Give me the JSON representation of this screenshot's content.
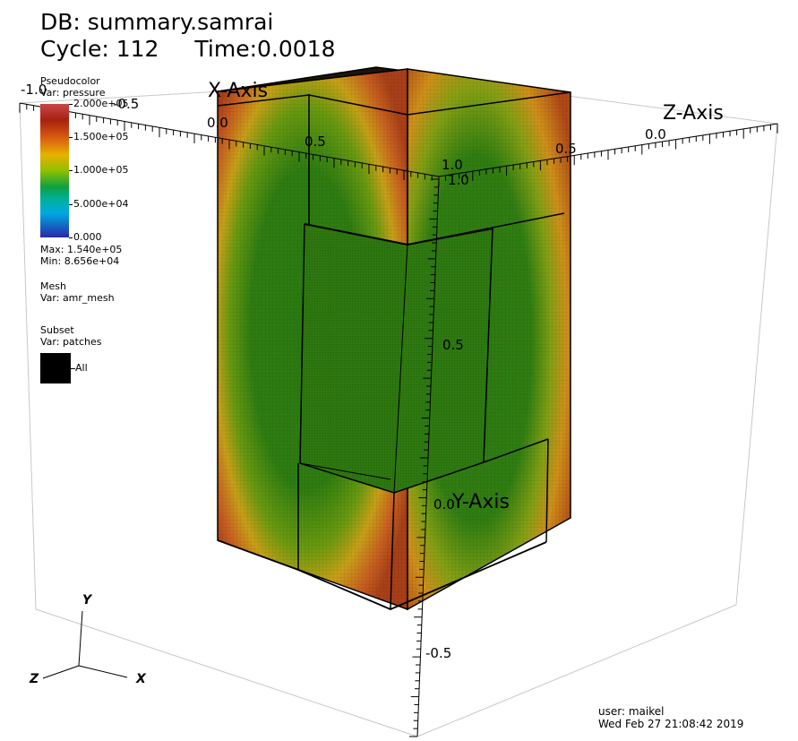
{
  "header": {
    "db": "DB: summary.samrai",
    "cycle": "Cycle: 112",
    "time": "Time:0.0018"
  },
  "legend": {
    "plot_type": "Pseudocolor",
    "var": "Var: pressure",
    "ticks": [
      "2.000e+05",
      "1.500e+05",
      "1.000e+05",
      "5.000e+04",
      "0.000"
    ],
    "max": "Max: 1.540e+05",
    "min": "Min: 8.656e+04",
    "colors": [
      "#c84040",
      "#b02010",
      "#e07010",
      "#e0c000",
      "#30a000",
      "#00b080",
      "#00a0d0",
      "#2020a0"
    ]
  },
  "mesh": {
    "plot_type": "Mesh",
    "var": "Var: amr_mesh"
  },
  "subset": {
    "plot_type": "Subset",
    "var": "Var: patches",
    "item_label": "All",
    "item_color": "#000000"
  },
  "axes": {
    "x_title": "X-Axis",
    "y_title": "Y-Axis",
    "z_title": "Z-Axis",
    "x_labels": [
      "-1.0",
      "-0.5",
      "0.0",
      "0.5",
      "1.0"
    ],
    "y_labels": [
      "1.0",
      "0.5",
      "0.0",
      "-0.5"
    ],
    "z_labels": [
      "0.0",
      "0.5"
    ],
    "triad": {
      "x": "X",
      "y": "Y",
      "z": "Z"
    }
  },
  "footer": {
    "user": "user: maikel",
    "date": "Wed Feb 27 21:08:42 2019"
  }
}
